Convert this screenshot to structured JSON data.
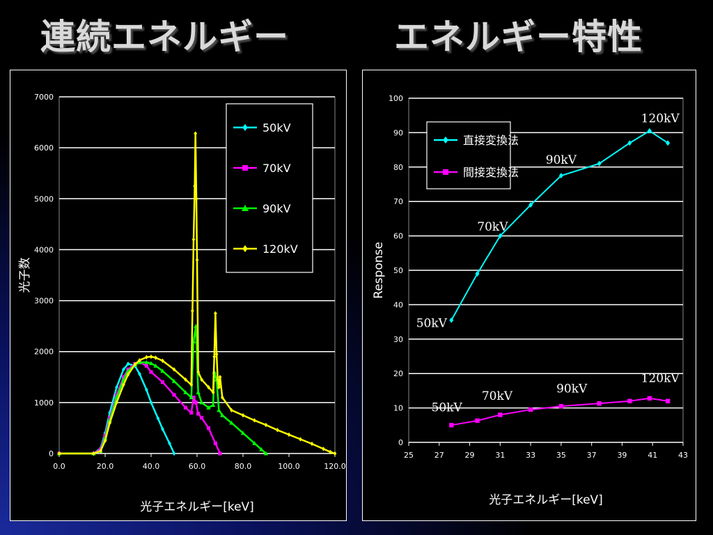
{
  "slide": {
    "title_left": "連続エネルギー",
    "title_right": "エネルギー特性"
  },
  "chart_data": [
    {
      "type": "line",
      "xlabel": "光子エネルギー[keV]",
      "ylabel": "光子数",
      "xlim": [
        0,
        120
      ],
      "ylim": [
        0,
        7000
      ],
      "xticks": [
        "0.0",
        "20.0",
        "40.0",
        "60.0",
        "80.0",
        "100.0",
        "120.0"
      ],
      "yticks": [
        "0",
        "1000",
        "2000",
        "3000",
        "4000",
        "5000",
        "6000",
        "7000"
      ],
      "grid": "horizontal",
      "legend": "top-right",
      "series": [
        {
          "name": "50kV",
          "color": "#00ffff",
          "marker": "diamond",
          "x": [
            0,
            15,
            18,
            20,
            22,
            25,
            28,
            30,
            33,
            35,
            38,
            40,
            43,
            45,
            48,
            50
          ],
          "y": [
            0,
            0,
            100,
            400,
            800,
            1300,
            1650,
            1760,
            1720,
            1560,
            1250,
            1000,
            690,
            480,
            200,
            0
          ]
        },
        {
          "name": "70kV",
          "color": "#ff00ff",
          "marker": "square",
          "x": [
            0,
            15,
            18,
            20,
            22,
            25,
            28,
            30,
            33,
            35,
            38,
            40,
            45,
            50,
            55,
            57.5,
            58.5,
            59.5,
            60.5,
            62,
            65,
            68,
            70
          ],
          "y": [
            0,
            0,
            80,
            350,
            700,
            1150,
            1500,
            1650,
            1760,
            1790,
            1720,
            1600,
            1400,
            1150,
            900,
            800,
            1100,
            1000,
            780,
            700,
            500,
            200,
            0
          ]
        },
        {
          "name": "90kV",
          "color": "#00ff00",
          "marker": "triangle",
          "x": [
            0,
            15,
            18,
            20,
            22,
            25,
            28,
            30,
            33,
            35,
            38,
            40,
            42,
            45,
            50,
            55,
            57.5,
            58.5,
            59.5,
            60.5,
            62,
            65,
            67,
            67.5,
            68.5,
            69.5,
            71,
            75,
            80,
            85,
            88,
            90
          ],
          "y": [
            0,
            0,
            50,
            300,
            650,
            1100,
            1450,
            1620,
            1740,
            1790,
            1790,
            1770,
            1720,
            1620,
            1420,
            1200,
            1100,
            2200,
            2500,
            1200,
            1000,
            900,
            950,
            1600,
            1450,
            850,
            750,
            600,
            400,
            200,
            80,
            0
          ]
        },
        {
          "name": "120kV",
          "color": "#ffff00",
          "marker": "diamond",
          "x": [
            0,
            15,
            18,
            20,
            22,
            25,
            28,
            30,
            33,
            35,
            38,
            40,
            42,
            45,
            50,
            55,
            57.5,
            58,
            58.5,
            59,
            59.3,
            59.7,
            60,
            60.5,
            62,
            65,
            67,
            67.5,
            68,
            68.5,
            69,
            69.5,
            70,
            71,
            75,
            80,
            85,
            90,
            95,
            100,
            105,
            110,
            115,
            118,
            120
          ],
          "y": [
            0,
            0,
            50,
            250,
            600,
            1000,
            1350,
            1550,
            1750,
            1830,
            1890,
            1900,
            1880,
            1820,
            1650,
            1450,
            1350,
            2800,
            4200,
            5250,
            6280,
            5000,
            3800,
            1600,
            1450,
            1300,
            1200,
            1900,
            2750,
            1950,
            1450,
            1300,
            1500,
            1100,
            850,
            750,
            650,
            560,
            460,
            370,
            280,
            190,
            90,
            30,
            0
          ]
        }
      ]
    },
    {
      "type": "line",
      "xlabel": "光子エネルギー[keV]",
      "ylabel": "Response",
      "xlim": [
        25,
        43
      ],
      "ylim": [
        0,
        100
      ],
      "xticks": [
        "25",
        "27",
        "29",
        "31",
        "33",
        "35",
        "37",
        "39",
        "41",
        "43"
      ],
      "yticks": [
        "0",
        "10",
        "20",
        "30",
        "40",
        "50",
        "60",
        "70",
        "80",
        "90",
        "100"
      ],
      "grid": "horizontal",
      "legend": "top-left",
      "series": [
        {
          "name": "直接変換法",
          "color": "#00ffff",
          "marker": "diamond",
          "x": [
            27.8,
            29.5,
            31,
            33,
            35,
            37.5,
            39.5,
            40.8,
            42
          ],
          "y": [
            35.5,
            49,
            60,
            69,
            77.5,
            81,
            87,
            90.5,
            87
          ]
        },
        {
          "name": "間接変換法",
          "color": "#ff00ff",
          "marker": "square",
          "x": [
            27.8,
            29.5,
            31,
            33,
            35,
            37.5,
            39.5,
            40.8,
            42
          ],
          "y": [
            5,
            6.3,
            8,
            9.5,
            10.5,
            11.3,
            12,
            12.8,
            12
          ]
        }
      ],
      "annotations": [
        {
          "text": "50kV",
          "x": 26.5,
          "y": 33.5
        },
        {
          "text": "70kV",
          "x": 30.5,
          "y": 61.5
        },
        {
          "text": "90kV",
          "x": 35,
          "y": 81
        },
        {
          "text": "120kV",
          "x": 41.5,
          "y": 93
        },
        {
          "text": "50kV",
          "x": 27.5,
          "y": 9
        },
        {
          "text": "70kV",
          "x": 30.8,
          "y": 12.3
        },
        {
          "text": "90kV",
          "x": 35.7,
          "y": 14.5
        },
        {
          "text": "120kV",
          "x": 41.5,
          "y": 17.5
        }
      ]
    }
  ]
}
